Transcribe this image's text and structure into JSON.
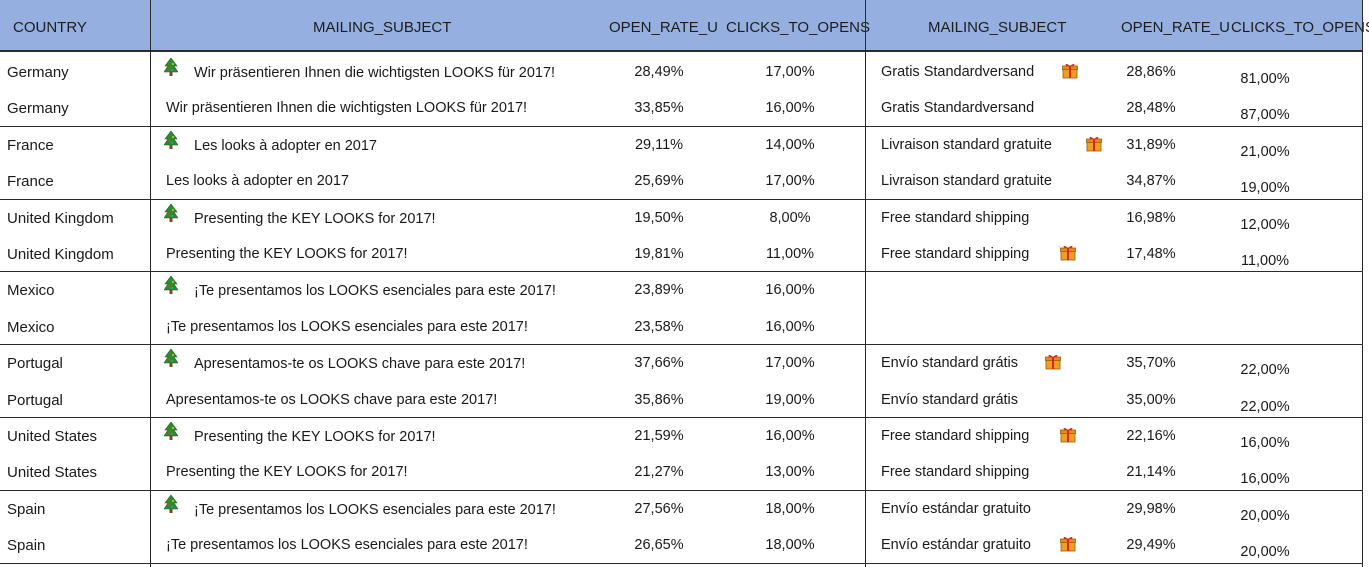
{
  "headers": {
    "country": "COUNTRY",
    "subject1": "MAILING_SUBJECT",
    "open1": "OPEN_RATE_U",
    "clicks1": "CLICKS_TO_OPENS",
    "subject2": "MAILING_SUBJECT",
    "open2": "OPEN_RATE_U",
    "clicks2": "CLICKS_TO_OPENS"
  },
  "icons": {
    "tree": "christmas-tree-icon",
    "gift": "gift-box-icon"
  },
  "colors": {
    "header_bg": "#95b0e0",
    "tree_green": "#2e8b2e",
    "gift_orange": "#e88a1a"
  },
  "rows": [
    {
      "country": "Germany",
      "subject1": "Wir präsentieren Ihnen die wichtigsten LOOKS für 2017!",
      "tree": true,
      "open1": "28,49%",
      "clicks1": "17,00%",
      "subject2": "Gratis Standardversand",
      "gift": true,
      "open2": "28,86%",
      "clicks2": "81,00%"
    },
    {
      "country": "Germany",
      "subject1": "Wir präsentieren Ihnen die wichtigsten LOOKS für 2017!",
      "tree": false,
      "open1": "33,85%",
      "clicks1": "16,00%",
      "subject2": "Gratis Standardversand",
      "gift": false,
      "open2": "28,48%",
      "clicks2": "87,00%"
    },
    {
      "country": "France",
      "subject1": "Les looks à adopter en 2017",
      "tree": true,
      "open1": "29,11%",
      "clicks1": "14,00%",
      "subject2": "Livraison standard gratuite",
      "gift": true,
      "open2": "31,89%",
      "clicks2": "21,00%"
    },
    {
      "country": "France",
      "subject1": "Les looks à adopter en 2017",
      "tree": false,
      "open1": "25,69%",
      "clicks1": "17,00%",
      "subject2": "Livraison standard gratuite",
      "gift": false,
      "open2": "34,87%",
      "clicks2": "19,00%"
    },
    {
      "country": "United Kingdom",
      "subject1": "Presenting the KEY LOOKS for 2017!",
      "tree": true,
      "open1": "19,50%",
      "clicks1": "8,00%",
      "subject2": "Free standard shipping",
      "gift": false,
      "open2": "16,98%",
      "clicks2": "12,00%"
    },
    {
      "country": "United Kingdom",
      "subject1": "Presenting the KEY LOOKS for 2017!",
      "tree": false,
      "open1": "19,81%",
      "clicks1": "11,00%",
      "subject2": "Free standard shipping",
      "gift": true,
      "open2": "17,48%",
      "clicks2": "11,00%"
    },
    {
      "country": "Mexico",
      "subject1": "¡Te presentamos los LOOKS esenciales para este 2017!",
      "tree": true,
      "open1": "23,89%",
      "clicks1": "16,00%",
      "subject2": "",
      "gift": false,
      "open2": "",
      "clicks2": ""
    },
    {
      "country": "Mexico",
      "subject1": "¡Te presentamos los LOOKS esenciales para este 2017!",
      "tree": false,
      "open1": "23,58%",
      "clicks1": "16,00%",
      "subject2": "",
      "gift": false,
      "open2": "",
      "clicks2": ""
    },
    {
      "country": "Portugal",
      "subject1": "Apresentamos-te os LOOKS chave para este 2017!",
      "tree": true,
      "open1": "37,66%",
      "clicks1": "17,00%",
      "subject2": "Envío standard grátis",
      "gift": true,
      "open2": "35,70%",
      "clicks2": "22,00%"
    },
    {
      "country": "Portugal",
      "subject1": "Apresentamos-te os LOOKS chave para este 2017!",
      "tree": false,
      "open1": "35,86%",
      "clicks1": "19,00%",
      "subject2": "Envío standard grátis",
      "gift": false,
      "open2": "35,00%",
      "clicks2": "22,00%"
    },
    {
      "country": "United States",
      "subject1": "Presenting the KEY LOOKS for 2017!",
      "tree": true,
      "open1": "21,59%",
      "clicks1": "16,00%",
      "subject2": "Free standard shipping",
      "gift": true,
      "open2": "22,16%",
      "clicks2": "16,00%"
    },
    {
      "country": "United States",
      "subject1": "Presenting the KEY LOOKS for 2017!",
      "tree": false,
      "open1": "21,27%",
      "clicks1": "13,00%",
      "subject2": "Free standard shipping",
      "gift": false,
      "open2": "21,14%",
      "clicks2": "16,00%"
    },
    {
      "country": "Spain",
      "subject1": "¡Te presentamos los LOOKS esenciales para este 2017!",
      "tree": true,
      "open1": "27,56%",
      "clicks1": "18,00%",
      "subject2": "Envío estándar gratuito",
      "gift": false,
      "open2": "29,98%",
      "clicks2": "20,00%"
    },
    {
      "country": "Spain",
      "subject1": "¡Te presentamos los LOOKS esenciales para este 2017!",
      "tree": false,
      "open1": "26,65%",
      "clicks1": "18,00%",
      "subject2": "Envío estándar gratuito",
      "gift": true,
      "open2": "29,49%",
      "clicks2": "20,00%"
    }
  ]
}
